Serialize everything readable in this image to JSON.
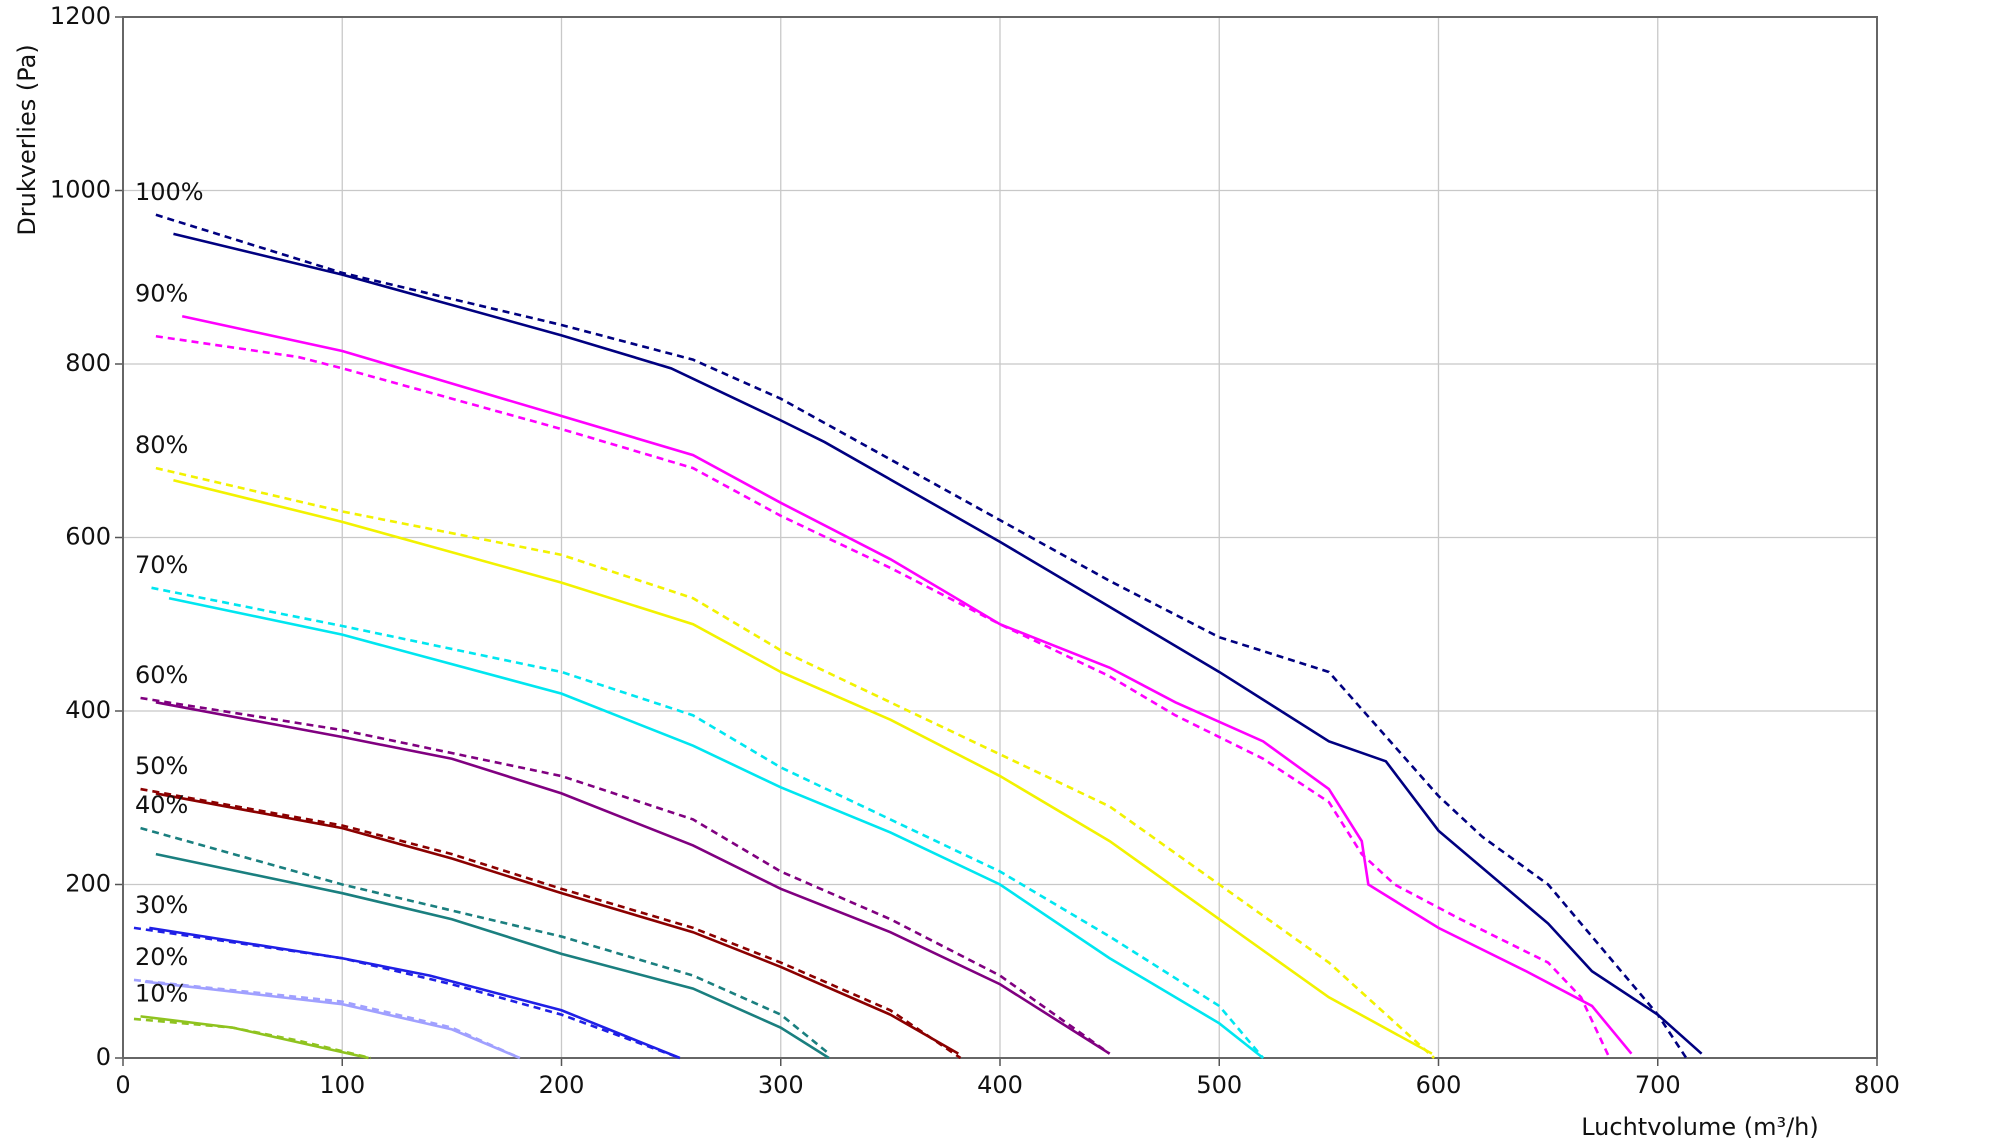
{
  "chart_data": {
    "type": "line",
    "x_label": "Luchtvolume (m³/h)",
    "y_label": "Drukverlies (Pa)",
    "xlim": [
      0,
      800
    ],
    "ylim": [
      0,
      1200
    ],
    "xticks": [
      0,
      100,
      200,
      300,
      400,
      500,
      600,
      700,
      800
    ],
    "yticks": [
      0,
      200,
      400,
      600,
      800,
      1000,
      1200
    ],
    "grid": true,
    "series": [
      {
        "name": "100%",
        "color": "#000080",
        "dashed": false,
        "x": [
          23,
          100,
          200,
          250,
          300,
          320,
          400,
          450,
          500,
          550,
          576,
          600,
          650,
          670,
          700,
          720
        ],
        "values": [
          950,
          903,
          833,
          795,
          735,
          710,
          595,
          520,
          445,
          365,
          342,
          262,
          155,
          100,
          50,
          5
        ]
      },
      {
        "color": "#000080",
        "dashed": true,
        "x": [
          15,
          100,
          200,
          260,
          300,
          350,
          400,
          450,
          500,
          550,
          600,
          620,
          650,
          680,
          700,
          713
        ],
        "values": [
          972,
          905,
          845,
          805,
          760,
          690,
          620,
          550,
          485,
          445,
          302,
          255,
          200,
          110,
          50,
          0
        ]
      },
      {
        "name": "90%",
        "color": "#ff00ff",
        "dashed": false,
        "x": [
          27,
          100,
          200,
          260,
          300,
          350,
          400,
          450,
          480,
          520,
          550,
          565,
          568,
          600,
          640,
          670,
          688
        ],
        "values": [
          855,
          815,
          740,
          695,
          640,
          575,
          500,
          450,
          410,
          365,
          310,
          250,
          200,
          150,
          100,
          60,
          5
        ]
      },
      {
        "color": "#ff00ff",
        "dashed": true,
        "x": [
          15,
          80,
          100,
          200,
          260,
          300,
          350,
          400,
          450,
          480,
          520,
          550,
          565,
          580,
          610,
          650,
          665,
          678
        ],
        "values": [
          832,
          808,
          795,
          725,
          680,
          625,
          565,
          500,
          440,
          395,
          345,
          295,
          235,
          200,
          160,
          110,
          70,
          0
        ]
      },
      {
        "name": "80%",
        "color": "#f2f200",
        "dashed": false,
        "x": [
          23,
          100,
          200,
          260,
          300,
          350,
          400,
          450,
          500,
          550,
          597
        ],
        "values": [
          666,
          618,
          548,
          500,
          445,
          390,
          325,
          250,
          160,
          70,
          5
        ]
      },
      {
        "color": "#f2f200",
        "dashed": true,
        "x": [
          15,
          100,
          200,
          260,
          300,
          350,
          400,
          450,
          500,
          550,
          598
        ],
        "values": [
          680,
          630,
          580,
          530,
          470,
          410,
          350,
          290,
          200,
          110,
          0
        ]
      },
      {
        "name": "70%",
        "color": "#00e6f0",
        "dashed": false,
        "x": [
          21,
          100,
          200,
          260,
          300,
          350,
          400,
          450,
          500,
          520
        ],
        "values": [
          530,
          488,
          420,
          360,
          312,
          260,
          200,
          115,
          40,
          0
        ]
      },
      {
        "color": "#00e6f0",
        "dashed": true,
        "x": [
          13,
          100,
          200,
          260,
          300,
          350,
          400,
          450,
          500,
          520
        ],
        "values": [
          542,
          498,
          445,
          395,
          335,
          275,
          215,
          140,
          60,
          0
        ]
      },
      {
        "name": "60%",
        "color": "#800080",
        "dashed": false,
        "x": [
          15,
          100,
          150,
          200,
          260,
          300,
          350,
          400,
          450
        ],
        "values": [
          410,
          370,
          345,
          305,
          245,
          195,
          145,
          85,
          5
        ]
      },
      {
        "color": "#800080",
        "dashed": true,
        "x": [
          8,
          100,
          200,
          260,
          300,
          350,
          400,
          450
        ],
        "values": [
          415,
          378,
          325,
          275,
          215,
          160,
          95,
          5
        ]
      },
      {
        "name": "50%",
        "color": "#8b0000",
        "dashed": false,
        "x": [
          15,
          100,
          150,
          200,
          260,
          300,
          350,
          381
        ],
        "values": [
          305,
          265,
          230,
          190,
          145,
          105,
          50,
          5
        ]
      },
      {
        "color": "#8b0000",
        "dashed": true,
        "x": [
          8,
          100,
          150,
          200,
          260,
          300,
          350,
          382
        ],
        "values": [
          310,
          268,
          235,
          195,
          150,
          110,
          55,
          0
        ]
      },
      {
        "name": "40%",
        "color": "#1a7f7f",
        "dashed": false,
        "x": [
          15,
          100,
          150,
          200,
          260,
          300,
          322
        ],
        "values": [
          235,
          190,
          160,
          120,
          80,
          35,
          0
        ]
      },
      {
        "color": "#1a7f7f",
        "dashed": true,
        "x": [
          8,
          100,
          200,
          260,
          300,
          322
        ],
        "values": [
          265,
          200,
          140,
          95,
          50,
          5
        ]
      },
      {
        "name": "30%",
        "color": "#1f1fe6",
        "dashed": false,
        "x": [
          12,
          100,
          140,
          200,
          254
        ],
        "values": [
          150,
          115,
          95,
          55,
          0
        ]
      },
      {
        "color": "#1f1fe6",
        "dashed": true,
        "x": [
          5,
          100,
          150,
          200,
          254
        ],
        "values": [
          150,
          115,
          85,
          50,
          0
        ]
      },
      {
        "name": "20%",
        "color": "#a0a0ff",
        "dashed": false,
        "x": [
          10,
          100,
          150,
          181
        ],
        "values": [
          88,
          62,
          33,
          0
        ]
      },
      {
        "color": "#a0a0ff",
        "dashed": true,
        "x": [
          5,
          100,
          150,
          181
        ],
        "values": [
          90,
          65,
          35,
          0
        ]
      },
      {
        "name": "10%",
        "color": "#8fc31f",
        "dashed": false,
        "x": [
          8,
          50,
          80,
          112
        ],
        "values": [
          48,
          35,
          18,
          0
        ]
      },
      {
        "color": "#8fc31f",
        "dashed": true,
        "x": [
          5,
          50,
          80,
          113
        ],
        "values": [
          45,
          35,
          20,
          0
        ]
      }
    ]
  }
}
